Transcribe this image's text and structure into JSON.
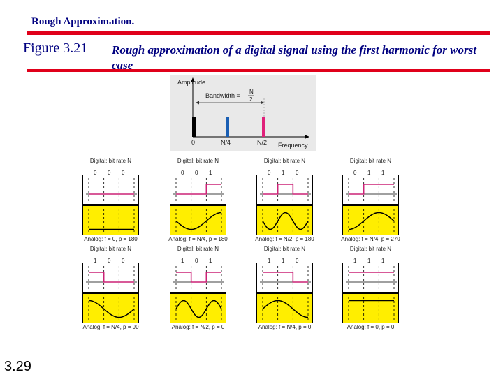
{
  "slide": {
    "heading": "Rough Approximation.",
    "figure_number": "Figure 3.21",
    "caption": "Rough approximation of a digital signal using the first harmonic for worst case",
    "page_number": "3.29"
  },
  "spectrum": {
    "y_axis_label": "Amplitude",
    "bandwidth_label": "Bandwidth =",
    "bandwidth_num": "N",
    "bandwidth_den": "2",
    "x_axis_label": "Frequency",
    "ticks": [
      "0",
      "N/4",
      "N/2"
    ],
    "bars": [
      {
        "tick": "0",
        "color": "#000000",
        "height": 1.0
      },
      {
        "tick": "N/4",
        "color": "#1a5fb4",
        "height": 1.0
      },
      {
        "tick": "N/2",
        "color": "#e0217a",
        "height": 1.0
      }
    ]
  },
  "panels": [
    {
      "digital_label": "Digital: bit rate N",
      "bits": [
        "0",
        "0",
        "0"
      ],
      "analog_label": "Analog: f = 0, p = 180"
    },
    {
      "digital_label": "Digital: bit rate N",
      "bits": [
        "0",
        "0",
        "1"
      ],
      "analog_label": "Analog: f = N/4, p = 180"
    },
    {
      "digital_label": "Digital: bit rate N",
      "bits": [
        "0",
        "1",
        "0"
      ],
      "analog_label": "Analog: f = N/2, p = 180"
    },
    {
      "digital_label": "Digital: bit rate N",
      "bits": [
        "0",
        "1",
        "1"
      ],
      "analog_label": "Analog: f = N/4, p = 270"
    },
    {
      "digital_label": "Digital: bit rate N",
      "bits": [
        "1",
        "0",
        "0"
      ],
      "analog_label": "Analog: f = N/4, p = 90"
    },
    {
      "digital_label": "Digital: bit rate N",
      "bits": [
        "1",
        "0",
        "1"
      ],
      "analog_label": "Analog: f = N/2, p = 0"
    },
    {
      "digital_label": "Digital: bit rate N",
      "bits": [
        "1",
        "1",
        "0"
      ],
      "analog_label": "Analog: f = N/4, p = 0"
    },
    {
      "digital_label": "Digital: bit rate N",
      "bits": [
        "1",
        "1",
        "1"
      ],
      "analog_label": "Analog: f = 0, p = 0"
    }
  ],
  "colors": {
    "title": "#000080",
    "rule": "#e0001a",
    "digital_wave": "#cc2277",
    "analog_bg": "#ffee00",
    "analog_wave": "#000000"
  }
}
